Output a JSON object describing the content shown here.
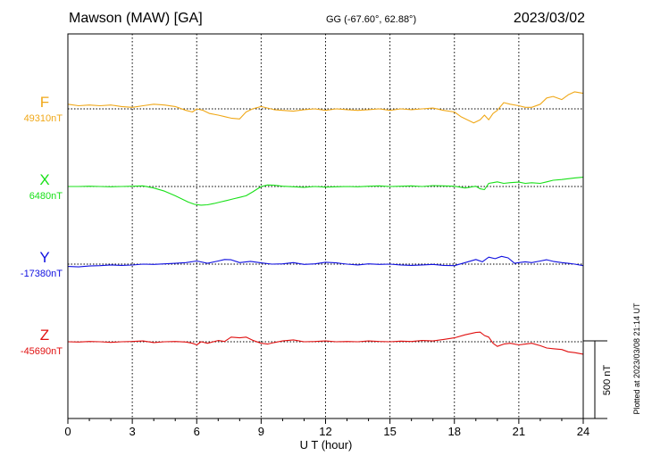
{
  "header": {
    "title": "Mawson (MAW)  [GA]",
    "coords": "GG (-67.60°,  62.88°)",
    "date": "2023/03/02"
  },
  "plotted_note": "Plotted at 2023/03/08 21:14 UT",
  "scale_label": "500 nT",
  "colors": {
    "F": "#f0a818",
    "X": "#18e018",
    "Y": "#1010e0",
    "Z": "#e01010",
    "grid": "#000000"
  },
  "chart_data": {
    "type": "line",
    "xlabel": "U T (hour)",
    "xlim": [
      0,
      24
    ],
    "xticks": [
      0,
      3,
      6,
      9,
      12,
      15,
      18,
      21,
      24
    ],
    "scale_nT": 500,
    "series": [
      {
        "name": "F",
        "baseline_label": "49310nT",
        "baseline_nT": 49310,
        "x": [
          0,
          0.5,
          1,
          1.5,
          2,
          2.5,
          3,
          3.5,
          4,
          4.5,
          5,
          5.5,
          5.8,
          6,
          6.3,
          6.6,
          7,
          7.3,
          7.6,
          8,
          8.3,
          8.6,
          9,
          9.3,
          9.6,
          10,
          10.5,
          11,
          11.5,
          12,
          12.5,
          13,
          13.5,
          14,
          14.5,
          15,
          15.5,
          16,
          16.5,
          17,
          17.5,
          18,
          18.3,
          18.6,
          18.9,
          19.2,
          19.4,
          19.6,
          19.8,
          20,
          20.3,
          20.6,
          21,
          21.3,
          21.6,
          22,
          22.3,
          22.6,
          23,
          23.3,
          23.6,
          24
        ],
        "y": [
          49340,
          49330,
          49335,
          49330,
          49335,
          49325,
          49320,
          49330,
          49340,
          49335,
          49325,
          49300,
          49290,
          49310,
          49300,
          49280,
          49270,
          49260,
          49250,
          49245,
          49290,
          49310,
          49325,
          49315,
          49305,
          49300,
          49295,
          49305,
          49310,
          49300,
          49310,
          49305,
          49300,
          49305,
          49310,
          49300,
          49310,
          49305,
          49310,
          49315,
          49300,
          49290,
          49260,
          49240,
          49220,
          49240,
          49270,
          49240,
          49280,
          49300,
          49350,
          49340,
          49330,
          49320,
          49320,
          49340,
          49380,
          49390,
          49370,
          49400,
          49420,
          49410
        ]
      },
      {
        "name": "X",
        "baseline_label": "6480nT",
        "baseline_nT": 6480,
        "x": [
          0,
          0.5,
          1,
          1.5,
          2,
          2.5,
          3,
          3.5,
          4,
          4.5,
          5,
          5.3,
          5.6,
          5.9,
          6.2,
          6.5,
          6.8,
          7.1,
          7.4,
          7.7,
          8,
          8.3,
          8.6,
          9,
          9.3,
          9.6,
          10,
          10.5,
          11,
          11.5,
          12,
          12.5,
          13,
          13.5,
          14,
          14.5,
          15,
          15.5,
          16,
          16.5,
          17,
          17.5,
          18,
          18.5,
          19,
          19.2,
          19.4,
          19.6,
          19.8,
          20,
          20.3,
          20.6,
          21,
          21.3,
          21.6,
          22,
          22.3,
          22.6,
          23,
          23.3,
          23.6,
          24
        ],
        "y": [
          6480,
          6480,
          6482,
          6480,
          6478,
          6480,
          6482,
          6484,
          6470,
          6450,
          6420,
          6400,
          6380,
          6365,
          6360,
          6362,
          6370,
          6380,
          6390,
          6400,
          6410,
          6420,
          6445,
          6480,
          6490,
          6488,
          6482,
          6478,
          6475,
          6480,
          6476,
          6478,
          6480,
          6478,
          6482,
          6484,
          6480,
          6482,
          6484,
          6480,
          6486,
          6484,
          6482,
          6470,
          6482,
          6465,
          6460,
          6500,
          6505,
          6510,
          6500,
          6505,
          6508,
          6500,
          6504,
          6500,
          6510,
          6520,
          6525,
          6530,
          6535,
          6540
        ]
      },
      {
        "name": "Y",
        "baseline_label": "-17380nT",
        "baseline_nT": -17380,
        "x": [
          0,
          0.5,
          1,
          1.5,
          2,
          2.5,
          3,
          3.5,
          4,
          4.5,
          5,
          5.5,
          6,
          6.5,
          7,
          7.3,
          7.6,
          8,
          8.5,
          9,
          9.5,
          10,
          10.5,
          11,
          11.5,
          12,
          12.5,
          13,
          13.5,
          14,
          14.5,
          15,
          15.5,
          16,
          16.5,
          17,
          17.5,
          18,
          18.5,
          19,
          19.3,
          19.6,
          19.9,
          20.2,
          20.5,
          20.8,
          21,
          21.3,
          21.6,
          22,
          22.3,
          22.6,
          23,
          23.3,
          23.6,
          24
        ],
        "y": [
          -17395,
          -17398,
          -17392,
          -17390,
          -17385,
          -17388,
          -17386,
          -17380,
          -17382,
          -17378,
          -17375,
          -17370,
          -17360,
          -17375,
          -17360,
          -17350,
          -17352,
          -17370,
          -17362,
          -17372,
          -17380,
          -17378,
          -17370,
          -17382,
          -17378,
          -17368,
          -17372,
          -17380,
          -17385,
          -17378,
          -17382,
          -17380,
          -17385,
          -17388,
          -17385,
          -17382,
          -17388,
          -17390,
          -17370,
          -17350,
          -17365,
          -17335,
          -17345,
          -17330,
          -17340,
          -17375,
          -17370,
          -17365,
          -17370,
          -17360,
          -17352,
          -17362,
          -17370,
          -17375,
          -17380,
          -17390
        ]
      },
      {
        "name": "Z",
        "baseline_label": "-45690nT",
        "baseline_nT": -45690,
        "x": [
          0,
          0.5,
          1,
          1.5,
          2,
          2.5,
          3,
          3.5,
          4,
          4.5,
          5,
          5.5,
          5.8,
          6,
          6.2,
          6.5,
          7,
          7.3,
          7.6,
          8,
          8.3,
          8.6,
          9,
          9.3,
          9.6,
          10,
          10.5,
          11,
          11.5,
          12,
          12.5,
          13,
          13.5,
          14,
          14.5,
          15,
          15.5,
          16,
          16.5,
          17,
          17.5,
          18,
          18.5,
          19,
          19.2,
          19.4,
          19.6,
          19.8,
          20,
          20.3,
          20.6,
          21,
          21.3,
          21.6,
          22,
          22.3,
          22.6,
          23,
          23.3,
          23.6,
          24
        ],
        "y": [
          -45690,
          -45692,
          -45688,
          -45690,
          -45694,
          -45690,
          -45688,
          -45685,
          -45695,
          -45690,
          -45688,
          -45692,
          -45700,
          -45710,
          -45690,
          -45700,
          -45682,
          -45688,
          -45660,
          -45665,
          -45660,
          -45680,
          -45700,
          -45705,
          -45695,
          -45685,
          -45678,
          -45690,
          -45688,
          -45685,
          -45690,
          -45688,
          -45690,
          -45685,
          -45688,
          -45690,
          -45686,
          -45688,
          -45682,
          -45685,
          -45675,
          -45665,
          -45645,
          -45630,
          -45628,
          -45650,
          -45660,
          -45700,
          -45720,
          -45705,
          -45700,
          -45710,
          -45705,
          -45700,
          -45715,
          -45730,
          -45735,
          -45740,
          -45755,
          -45760,
          -45770
        ]
      }
    ]
  }
}
